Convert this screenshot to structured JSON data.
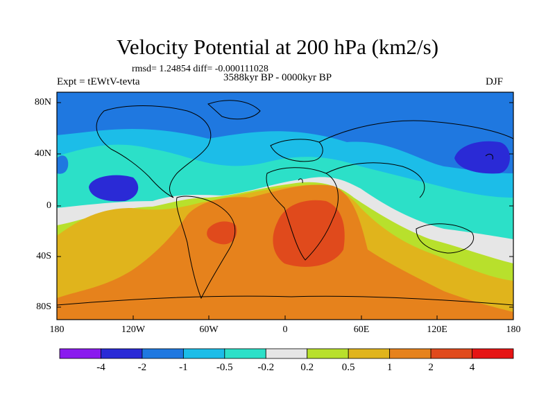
{
  "title": "Velocity Potential at 200 hPa (km2/s)",
  "stats": "rmsd= 1.24854 diff= -0.000111028",
  "left_label": "Expt = tEWtV-tevta",
  "center_label": "3588kyr BP - 0000kyr BP",
  "right_label": "DJF",
  "lat_ticks": [
    "80N",
    "40N",
    "0",
    "40S",
    "80S"
  ],
  "lon_ticks": [
    "180",
    "120W",
    "60W",
    "0",
    "60E",
    "120E",
    "180"
  ],
  "colorbar": {
    "colors": [
      "#8a1aee",
      "#2a2ad6",
      "#1f78e0",
      "#1cbde8",
      "#2ce0c8",
      "#e6e6e6",
      "#b8e02c",
      "#e0b41c",
      "#e6821c",
      "#e04a1c",
      "#e61414"
    ],
    "labels": [
      "-4",
      "-2",
      "-1",
      "-0.5",
      "-0.2",
      "0.2",
      "0.5",
      "1",
      "2",
      "4"
    ]
  }
}
